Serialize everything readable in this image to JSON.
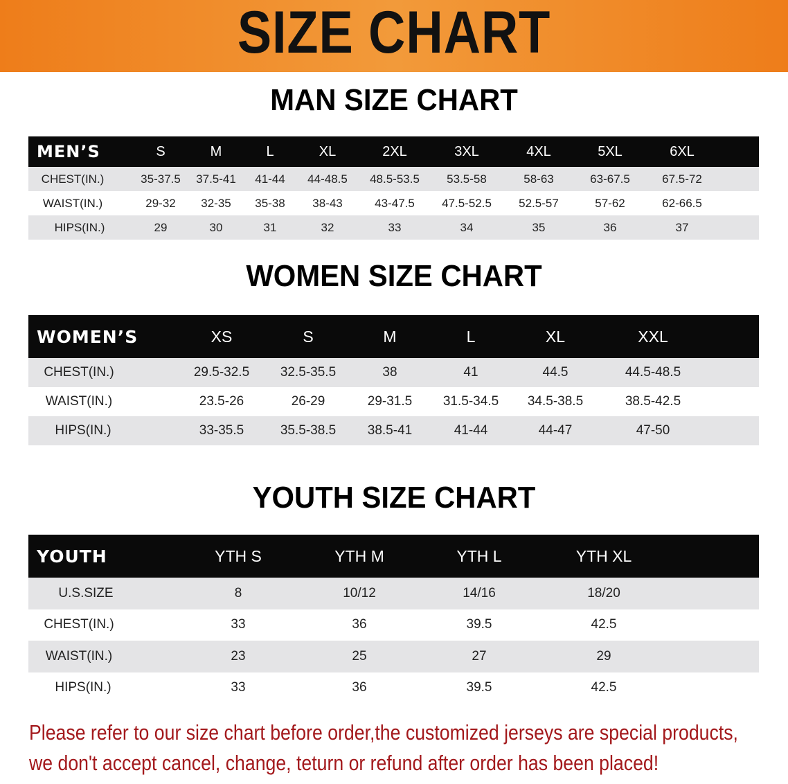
{
  "banner": {
    "title": "SIZE CHART",
    "color": "#ee7d1a"
  },
  "men": {
    "heading": "MAN SIZE CHART",
    "header": [
      "MEN’S",
      "S",
      "M",
      "L",
      "XL",
      "2XL",
      "3XL",
      "4XL",
      "5XL",
      "6XL"
    ],
    "rows": [
      [
        "CHEST(IN.)",
        "35-37.5",
        "37.5-41",
        "41-44",
        "44-48.5",
        "48.5-53.5",
        "53.5-58",
        "58-63",
        "63-67.5",
        "67.5-72"
      ],
      [
        "WAIST(IN.)",
        "29-32",
        "32-35",
        "35-38",
        "38-43",
        "43-47.5",
        "47.5-52.5",
        "52.5-57",
        "57-62",
        "62-66.5"
      ],
      [
        "HIPS(IN.)",
        "29",
        "30",
        "31",
        "32",
        "33",
        "34",
        "35",
        "36",
        "37"
      ]
    ]
  },
  "women": {
    "heading": "WOMEN SIZE CHART",
    "header": [
      "WOMEN’S",
      "XS",
      "S",
      "M",
      "L",
      "XL",
      "XXL"
    ],
    "rows": [
      [
        "CHEST(IN.)",
        "29.5-32.5",
        "32.5-35.5",
        "38",
        "41",
        "44.5",
        "44.5-48.5"
      ],
      [
        "WAIST(IN.)",
        "23.5-26",
        "26-29",
        "29-31.5",
        "31.5-34.5",
        "34.5-38.5",
        "38.5-42.5"
      ],
      [
        "HIPS(IN.)",
        "33-35.5",
        "35.5-38.5",
        "38.5-41",
        "41-44",
        "44-47",
        "47-50"
      ]
    ]
  },
  "youth": {
    "heading": "YOUTH SIZE CHART",
    "header": [
      "YOUTH",
      "YTH S",
      "YTH M",
      "YTH L",
      "YTH XL"
    ],
    "rows": [
      [
        "U.S.SIZE",
        "8",
        "10/12",
        "14/16",
        "18/20"
      ],
      [
        "CHEST(IN.)",
        "33",
        "36",
        "39.5",
        "42.5"
      ],
      [
        "WAIST(IN.)",
        "23",
        "25",
        "27",
        "29"
      ],
      [
        "HIPS(IN.)",
        "33",
        "36",
        "39.5",
        "42.5"
      ]
    ]
  },
  "note": {
    "line1": "Please refer to our size chart before order,the customized jerseys are special products,",
    "line2": "we don't accept cancel, change, teturn or refund after order has been placed!",
    "color": "#a3191c"
  }
}
